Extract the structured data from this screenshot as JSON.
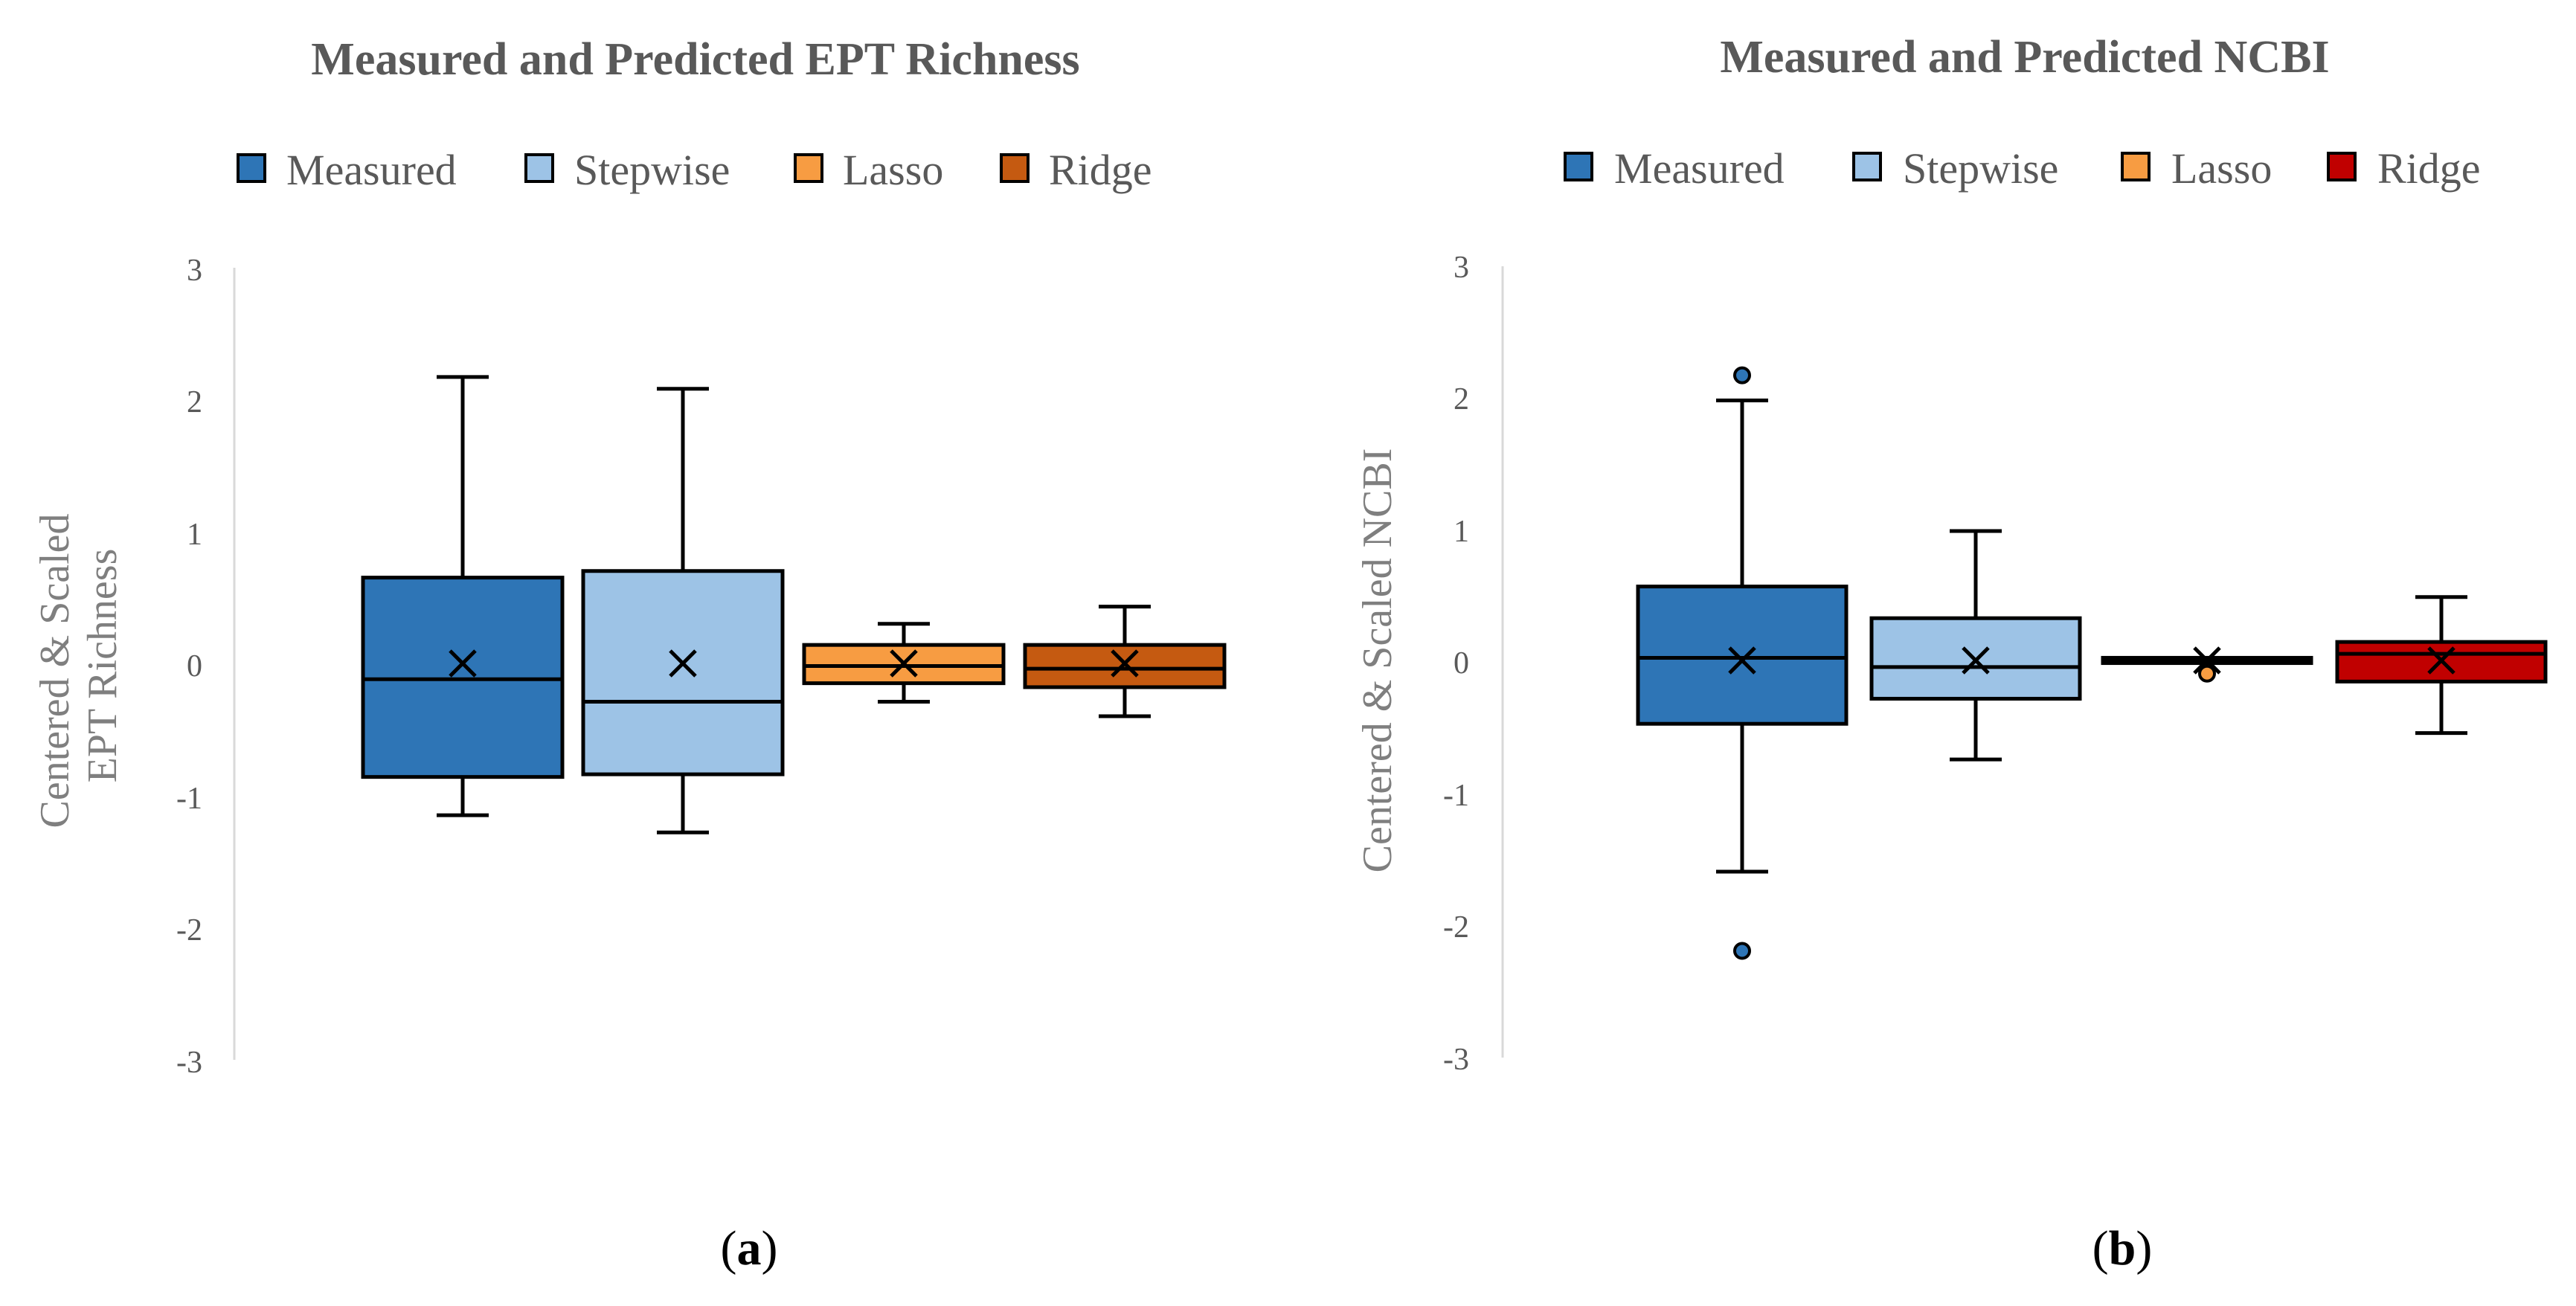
{
  "chart_data": [
    {
      "type": "boxplot",
      "title": "Measured and Predicted EPT Richness",
      "ylabel": "Centered & Scaled EPT Richness",
      "ylabel_lines": [
        "Centered & Scaled",
        "EPT Richness"
      ],
      "ylim": [
        -3,
        3
      ],
      "yticks": [
        "3",
        "2",
        "1",
        "0",
        "-1",
        "-2",
        "-3"
      ],
      "panel_label": "(a)",
      "panel_letter": "a",
      "series": [
        {
          "name": "Measured",
          "color": "#2e75b6",
          "min": -1.15,
          "q1": -0.86,
          "median": -0.12,
          "q3": 0.65,
          "max": 2.17,
          "mean": 0.0,
          "outliers": []
        },
        {
          "name": "Stepwise",
          "color": "#9dc3e6",
          "min": -1.28,
          "q1": -0.84,
          "median": -0.29,
          "q3": 0.7,
          "max": 2.08,
          "mean": 0.0,
          "outliers": []
        },
        {
          "name": "Lasso",
          "color": "#f79c42",
          "min": -0.29,
          "q1": -0.15,
          "median": -0.02,
          "q3": 0.14,
          "max": 0.3,
          "mean": 0.0,
          "outliers": []
        },
        {
          "name": "Ridge",
          "color": "#c55a11",
          "min": -0.4,
          "q1": -0.18,
          "median": -0.04,
          "q3": 0.14,
          "max": 0.43,
          "mean": 0.0,
          "outliers": []
        }
      ]
    },
    {
      "type": "boxplot",
      "title": "Measured and Predicted NCBI",
      "ylabel": "Centered & Scaled NCBI",
      "ylabel_lines": [
        "Centered & Scaled NCBI"
      ],
      "ylim": [
        -3,
        3
      ],
      "yticks": [
        "3",
        "2",
        "1",
        "0",
        "-1",
        "-2",
        "-3"
      ],
      "panel_label": "(b)",
      "panel_letter": "b",
      "series": [
        {
          "name": "Measured",
          "color": "#2e75b6",
          "min": -1.6,
          "q1": -0.48,
          "median": 0.02,
          "q3": 0.56,
          "max": 1.97,
          "mean": 0.0,
          "outliers": [
            2.16,
            -2.2
          ]
        },
        {
          "name": "Stepwise",
          "color": "#9dc3e6",
          "min": -0.75,
          "q1": -0.29,
          "median": -0.05,
          "q3": 0.32,
          "max": 0.98,
          "mean": 0.0,
          "outliers": []
        },
        {
          "name": "Lasso",
          "color": "#f79c42",
          "min": -0.02,
          "q1": -0.02,
          "median": 0.0,
          "q3": 0.02,
          "max": 0.02,
          "mean": 0.0,
          "outliers": [
            -0.1
          ]
        },
        {
          "name": "Ridge",
          "color": "#c00000",
          "min": -0.55,
          "q1": -0.16,
          "median": 0.05,
          "q3": 0.14,
          "max": 0.48,
          "mean": 0.0,
          "outliers": []
        }
      ]
    }
  ]
}
